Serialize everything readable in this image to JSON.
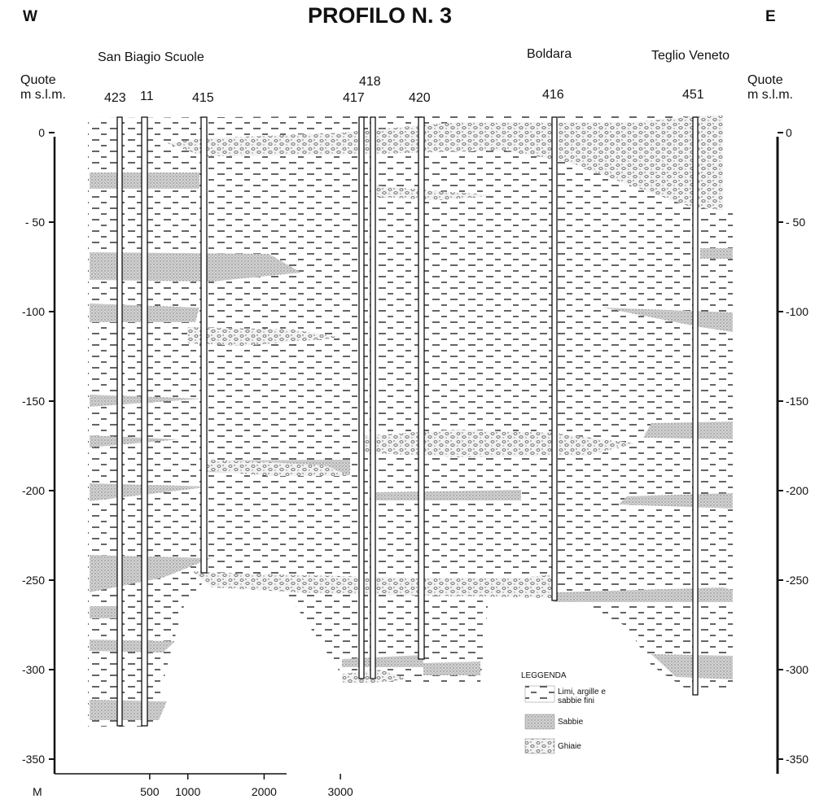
{
  "header": {
    "west": "W",
    "east": "E",
    "title": "PROFILO N. 3"
  },
  "places": {
    "san_biagio": "San Biagio Scuole",
    "boldara": "Boldara",
    "teglio": "Teglio Veneto"
  },
  "axis": {
    "left_title_1": "Quote",
    "left_title_2": "m s.l.m.",
    "right_title_1": "Quote",
    "right_title_2": "m s.l.m.",
    "left_ticks": [
      "0",
      "- 50",
      "-100",
      "-150",
      "-200",
      "-250",
      "-300",
      "-350"
    ],
    "right_ticks": [
      "0",
      "- 50",
      "-100",
      "-150",
      "-200",
      "-250",
      "-300",
      "-350"
    ],
    "depth_values": [
      0,
      -50,
      -100,
      -150,
      -200,
      -250,
      -300,
      -350
    ],
    "scale_unit": "M",
    "scale_ticks": [
      "500",
      "1000",
      "2000",
      "3000"
    ],
    "scale_values": [
      500,
      1000,
      2000,
      3000
    ]
  },
  "wells": [
    {
      "id": "423",
      "bottom_depth": -343
    },
    {
      "id": "11",
      "bottom_depth": -343
    },
    {
      "id": "415",
      "bottom_depth": -255
    },
    {
      "id": "417",
      "bottom_depth": -318
    },
    {
      "id": "418",
      "bottom_depth": -318
    },
    {
      "id": "420",
      "bottom_depth": -305
    },
    {
      "id": "416",
      "bottom_depth": -260
    },
    {
      "id": "451",
      "bottom_depth": -315
    }
  ],
  "legend": {
    "title": "LEGGENDA",
    "items": [
      {
        "label_1": "Limi, argille e",
        "label_2": "sabbie fini",
        "type": "clay"
      },
      {
        "label_1": "Sabbie",
        "label_2": "",
        "type": "sand"
      },
      {
        "label_1": "Ghiaie",
        "label_2": "",
        "type": "gravel"
      }
    ]
  },
  "colors": {
    "ink": "#111111",
    "sand": "#c9c9c9",
    "gravel_bg": "#f0f0f0",
    "clay_dash": "#222222"
  }
}
